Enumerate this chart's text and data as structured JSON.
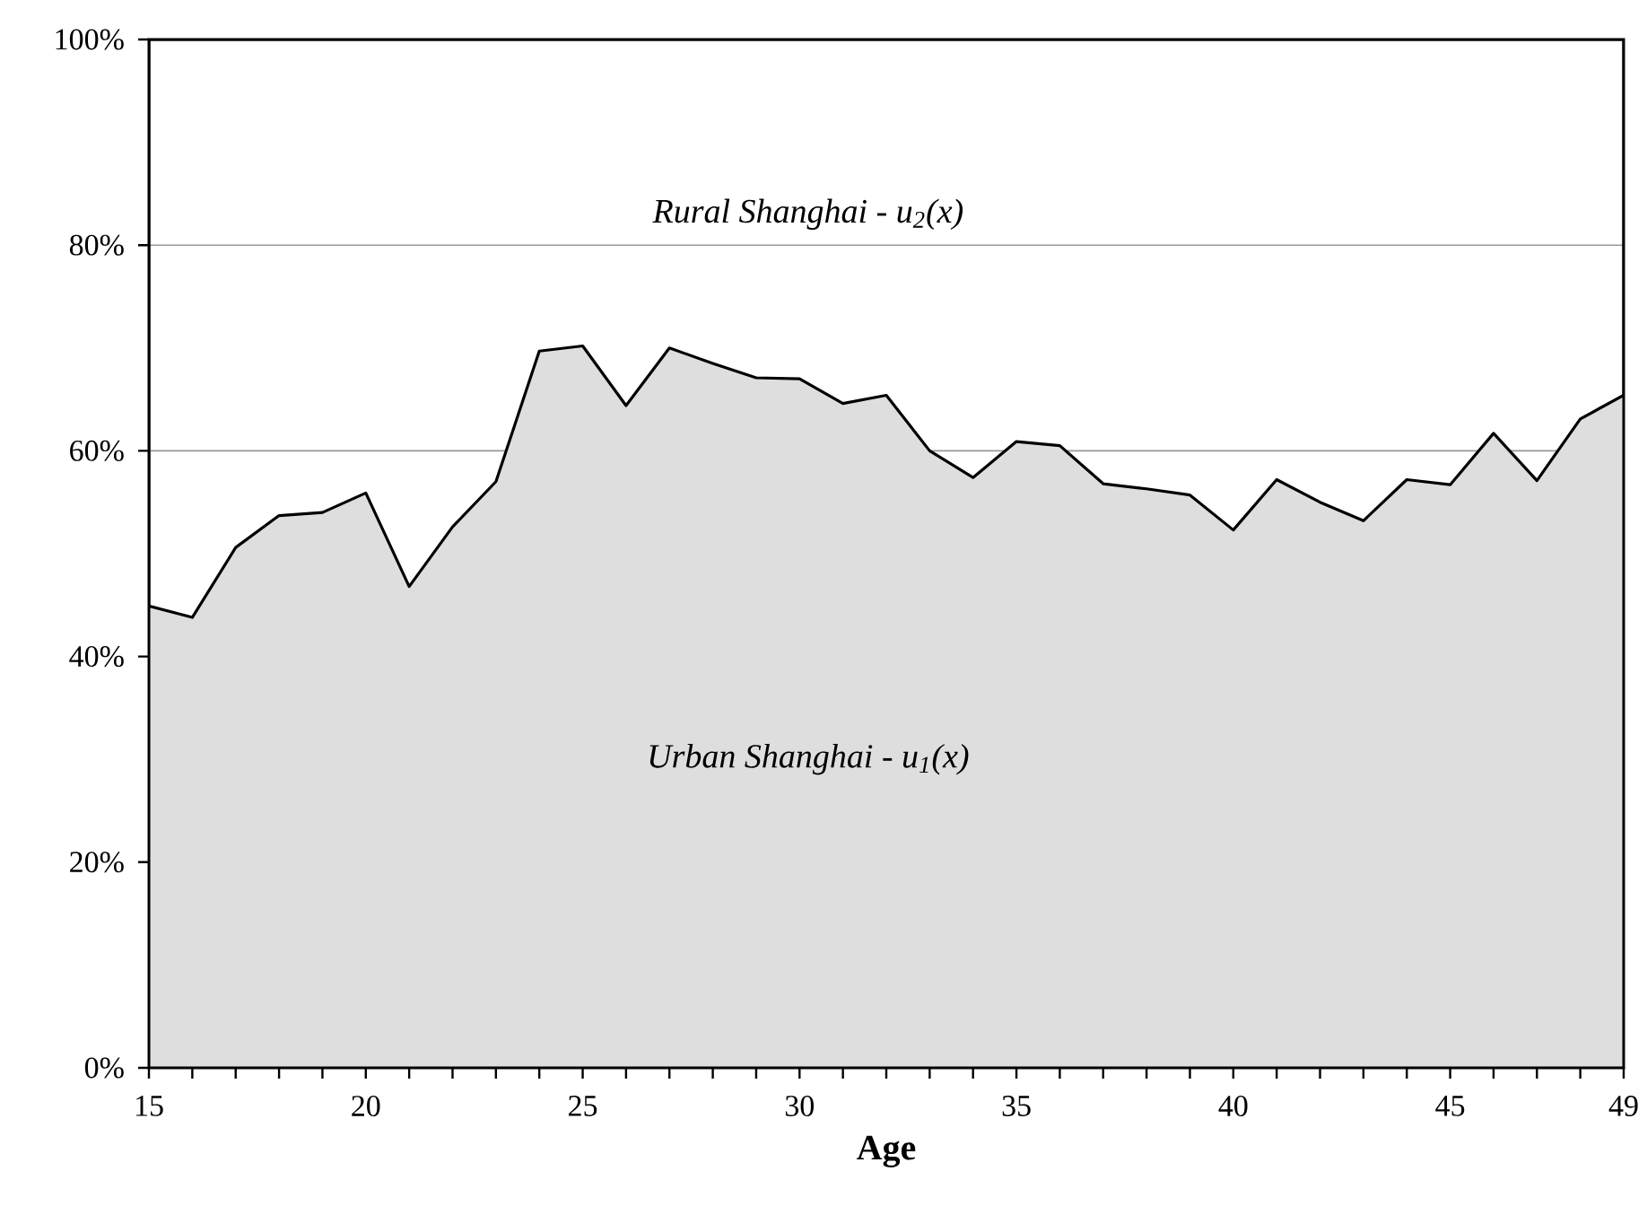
{
  "chart_data": {
    "type": "area",
    "xlabel": "Age",
    "x": [
      15,
      16,
      17,
      18,
      19,
      20,
      21,
      22,
      23,
      24,
      25,
      26,
      27,
      28,
      29,
      30,
      31,
      32,
      33,
      34,
      35,
      36,
      37,
      38,
      39,
      40,
      41,
      42,
      43,
      44,
      45,
      46,
      47,
      48,
      49
    ],
    "series": [
      {
        "color": "#dedede",
        "values": [
          44.9,
          43.8,
          50.6,
          53.7,
          54.0,
          55.9,
          46.8,
          52.6,
          57.0,
          69.7,
          70.2,
          64.4,
          70.0,
          68.5,
          67.1,
          67.0,
          64.6,
          65.4,
          60.0,
          57.4,
          60.9,
          60.5,
          56.8,
          56.3,
          55.7,
          52.3,
          57.2,
          55.0,
          53.2,
          57.2,
          56.7,
          61.7,
          57.1,
          63.1,
          65.4
        ]
      }
    ],
    "xlim": [
      15,
      49
    ],
    "xticks": [
      15,
      {
        "value": 16,
        "label": null
      },
      {
        "value": 17,
        "label": null
      },
      {
        "value": 18,
        "label": null
      },
      {
        "value": 19,
        "label": null
      },
      20,
      {
        "value": 21,
        "label": null
      },
      {
        "value": 22,
        "label": null
      },
      {
        "value": 23,
        "label": null
      },
      {
        "value": 24,
        "label": null
      },
      25,
      {
        "value": 26,
        "label": null
      },
      {
        "value": 27,
        "label": null
      },
      {
        "value": 28,
        "label": null
      },
      {
        "value": 29,
        "label": null
      },
      30,
      {
        "value": 31,
        "label": null
      },
      {
        "value": 32,
        "label": null
      },
      {
        "value": 33,
        "label": null
      },
      {
        "value": 34,
        "label": null
      },
      35,
      {
        "value": 36,
        "label": null
      },
      {
        "value": 37,
        "label": null
      },
      {
        "value": 38,
        "label": null
      },
      {
        "value": 39,
        "label": null
      },
      40,
      {
        "value": 41,
        "label": null
      },
      {
        "value": 42,
        "label": null
      },
      {
        "value": 43,
        "label": null
      },
      {
        "value": 44,
        "label": null
      },
      45,
      {
        "value": 46,
        "label": null
      },
      {
        "value": 47,
        "label": null
      },
      {
        "value": 48,
        "label": null
      },
      49
    ],
    "ylim": [
      0,
      100
    ],
    "yticks": [
      {
        "value": 0,
        "label": "0%"
      },
      {
        "value": 20,
        "label": "20%"
      },
      {
        "value": 40,
        "label": "40%"
      },
      {
        "value": 60,
        "label": "60%"
      },
      {
        "value": 80,
        "label": "80%"
      },
      {
        "value": 100,
        "label": "100%"
      }
    ],
    "grid": "y",
    "annotations": [
      "Rural Shanghai - u$_{2}$(x)",
      "Urban Shanghai - u$_{1}$(x)"
    ]
  }
}
